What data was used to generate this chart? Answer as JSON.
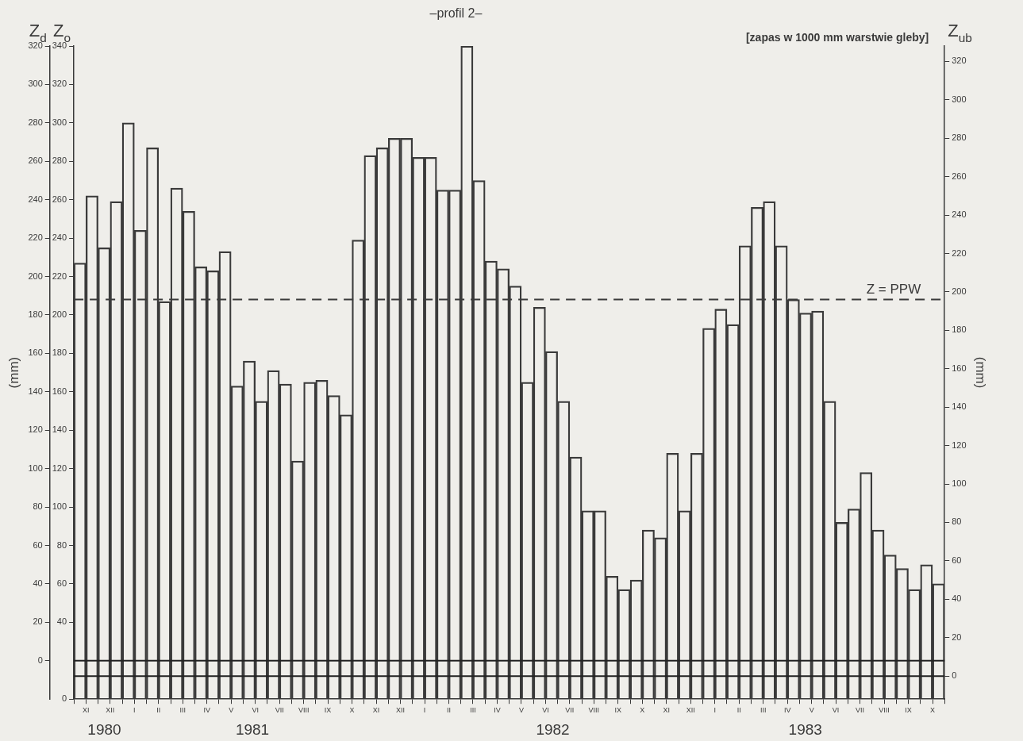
{
  "chart_data": {
    "type": "bar",
    "title": "–profil 2–",
    "subtitle": "[zapas w 1000 mm warstwie gleby]",
    "y2label": "(mm)",
    "y3label": "(mm)",
    "categories": [
      "XI",
      null,
      "XII",
      null,
      "I",
      null,
      "II",
      null,
      "III",
      null,
      "IV",
      null,
      "V",
      null,
      "VI",
      null,
      "VII",
      null,
      "VIII",
      null,
      "IX",
      null,
      "X",
      null,
      "XI",
      null,
      "XII",
      null,
      "I",
      null,
      "II",
      null,
      "III",
      null,
      "IV",
      null,
      "V",
      null,
      "VI",
      null,
      "VII",
      null,
      "VIII",
      null,
      "IX",
      null,
      "X",
      null,
      "XI",
      null,
      "XII",
      null,
      "I",
      null,
      "II",
      null,
      "III",
      null,
      "IV",
      null,
      "V",
      null,
      "VI",
      null,
      "VII",
      null,
      "VIII",
      null,
      "IX",
      null,
      "X",
      null
    ],
    "series": [
      {
        "color": "#3a3a3a",
        "axis": "y",
        "values": [
          227,
          262,
          235,
          259,
          300,
          244,
          287,
          207,
          266,
          254,
          225,
          223,
          233,
          163,
          176,
          155,
          171,
          164,
          124,
          165,
          166,
          158,
          148,
          239,
          283,
          287,
          292,
          292,
          282,
          282,
          265,
          265,
          340,
          270,
          228,
          224,
          215,
          165,
          204,
          181,
          155,
          126,
          98,
          98,
          64,
          57,
          62,
          88,
          84,
          128,
          98,
          128,
          193,
          203,
          195,
          236,
          256,
          259,
          236,
          208,
          201,
          202,
          155,
          92,
          99,
          118,
          88,
          75,
          68,
          57,
          70,
          60
        ]
      }
    ],
    "ylim": [
      0,
      340
    ],
    "yticks": [
      0,
      40,
      60,
      80,
      100,
      120,
      140,
      160,
      180,
      200,
      220,
      240,
      260,
      280,
      300,
      320,
      340
    ],
    "y2lim": [
      -20,
      320
    ],
    "y2ticks": [
      0,
      20,
      40,
      60,
      80,
      100,
      120,
      140,
      160,
      180,
      200,
      220,
      240,
      260,
      280,
      300,
      320
    ],
    "y3lim": [
      -12,
      328
    ],
    "y3ticks": [
      0,
      20,
      40,
      60,
      80,
      100,
      120,
      140,
      160,
      180,
      200,
      220,
      240,
      260,
      280,
      300,
      320
    ],
    "ref_lines": [
      {
        "axis": "y",
        "value": 208,
        "label": "Z = PPW",
        "line_style": "dashed",
        "color": "#3a3a3a"
      },
      {
        "axis": "y",
        "value": 20,
        "color": "#222222"
      },
      {
        "axis": "y",
        "value": 12,
        "color": "#222222"
      }
    ],
    "annotations": [
      "Z$_{d}$",
      "Z$_{o}$",
      "Z$_{ub}$",
      "1980",
      "1981",
      "1982",
      "1983"
    ],
    "grid": false,
    "legend": false
  }
}
